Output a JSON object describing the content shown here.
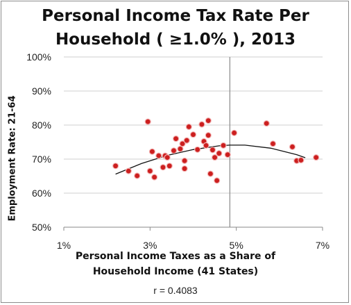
{
  "chart_data": {
    "type": "scatter",
    "title_line1": "Personal Income Tax Rate Per",
    "title_line2": "Household ( ≥1.0% ), 2013",
    "xlabel_line1": "Personal Income Taxes as a Share of",
    "xlabel_line2": "Household Income (41 States)",
    "ylabel": "Employment Rate: 21-64",
    "annotation": "r = 0.4083",
    "xlim": [
      1,
      7
    ],
    "ylim": [
      50,
      100
    ],
    "x_ticks": [
      1,
      3,
      5,
      7
    ],
    "x_tick_labels": [
      "1%",
      "3%",
      "5%",
      "7%"
    ],
    "y_ticks": [
      50,
      60,
      70,
      80,
      90,
      100
    ],
    "y_tick_labels": [
      "50%",
      "60%",
      "70%",
      "80%",
      "90%",
      "100%"
    ],
    "vertical_reference_x": 4.85,
    "grid": "horizontal",
    "marker_color": "#cc1f1f",
    "trendline": {
      "type": "polynomial",
      "points": [
        [
          2.2,
          65.6
        ],
        [
          2.8,
          68.7
        ],
        [
          3.4,
          71.1
        ],
        [
          4.0,
          72.8
        ],
        [
          4.6,
          73.9
        ],
        [
          4.85,
          74.1
        ],
        [
          5.2,
          74.1
        ],
        [
          5.8,
          73.2
        ],
        [
          6.4,
          71.3
        ],
        [
          6.6,
          70.4
        ]
      ]
    },
    "points": [
      {
        "x": 2.2,
        "y": 68.0
      },
      {
        "x": 2.5,
        "y": 66.5
      },
      {
        "x": 2.7,
        "y": 65.1
      },
      {
        "x": 2.95,
        "y": 81.0
      },
      {
        "x": 3.0,
        "y": 66.5
      },
      {
        "x": 3.05,
        "y": 72.2
      },
      {
        "x": 3.1,
        "y": 64.7
      },
      {
        "x": 3.2,
        "y": 71.0
      },
      {
        "x": 3.3,
        "y": 67.6
      },
      {
        "x": 3.35,
        "y": 71.0
      },
      {
        "x": 3.4,
        "y": 70.5
      },
      {
        "x": 3.45,
        "y": 68.0
      },
      {
        "x": 3.55,
        "y": 72.5
      },
      {
        "x": 3.6,
        "y": 76.0
      },
      {
        "x": 3.7,
        "y": 73.0
      },
      {
        "x": 3.75,
        "y": 74.5
      },
      {
        "x": 3.8,
        "y": 69.5
      },
      {
        "x": 3.8,
        "y": 67.2
      },
      {
        "x": 3.85,
        "y": 75.5
      },
      {
        "x": 3.9,
        "y": 79.5
      },
      {
        "x": 4.0,
        "y": 77.2
      },
      {
        "x": 4.1,
        "y": 72.8
      },
      {
        "x": 4.2,
        "y": 80.2
      },
      {
        "x": 4.25,
        "y": 75.2
      },
      {
        "x": 4.3,
        "y": 74.0
      },
      {
        "x": 4.35,
        "y": 77.0
      },
      {
        "x": 4.35,
        "y": 81.3
      },
      {
        "x": 4.4,
        "y": 65.7
      },
      {
        "x": 4.5,
        "y": 70.5
      },
      {
        "x": 4.55,
        "y": 63.7
      },
      {
        "x": 4.6,
        "y": 71.7
      },
      {
        "x": 4.7,
        "y": 74.0
      },
      {
        "x": 4.8,
        "y": 71.3
      },
      {
        "x": 4.95,
        "y": 77.7
      },
      {
        "x": 5.7,
        "y": 80.5
      },
      {
        "x": 5.85,
        "y": 74.5
      },
      {
        "x": 6.3,
        "y": 73.6
      },
      {
        "x": 6.4,
        "y": 69.5
      },
      {
        "x": 6.5,
        "y": 69.7
      },
      {
        "x": 6.85,
        "y": 70.5
      },
      {
        "x": 4.45,
        "y": 72.7
      }
    ]
  }
}
